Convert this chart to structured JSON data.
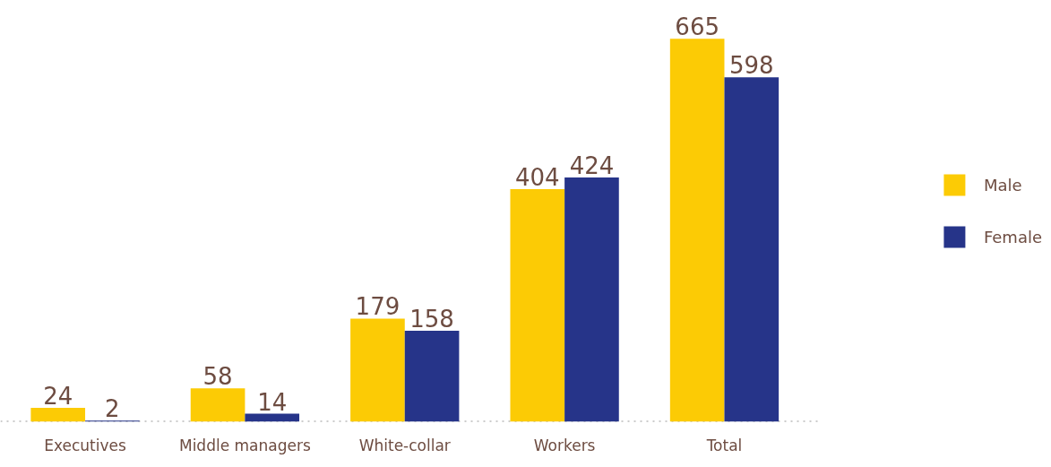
{
  "chart_data": {
    "type": "bar",
    "categories": [
      "Executives",
      "Middle managers",
      "White-collar",
      "Workers",
      "Total"
    ],
    "series": [
      {
        "name": "Male",
        "color": "#fccb05",
        "values": [
          24,
          58,
          179,
          404,
          665
        ]
      },
      {
        "name": "Female",
        "color": "#263489",
        "values": [
          2,
          14,
          158,
          424,
          598
        ]
      }
    ],
    "data_labels": true,
    "grid": false,
    "legend": "right"
  }
}
